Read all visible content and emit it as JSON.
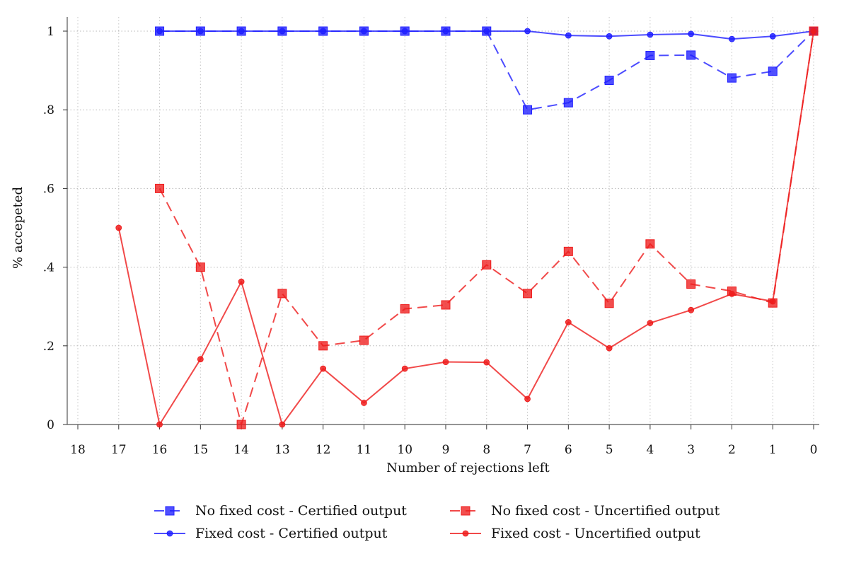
{
  "chart_data": {
    "type": "line",
    "xlabel": "Number of rejections left",
    "ylabel": "% accepeted",
    "x_ticks": [
      "18",
      "17",
      "16",
      "15",
      "14",
      "13",
      "12",
      "11",
      "10",
      "9",
      "8",
      "7",
      "6",
      "5",
      "4",
      "3",
      "2",
      "1",
      "0"
    ],
    "y_ticks": [
      "0",
      ".2",
      ".4",
      ".6",
      ".8",
      "1"
    ],
    "xlim": [
      18,
      0
    ],
    "ylim": [
      0,
      1
    ],
    "grid": true,
    "legend_position": "bottom",
    "series": [
      {
        "name": "No fixed cost - Certified output",
        "color": "#1f1fff",
        "dash": "dashed",
        "marker": "square",
        "points": [
          [
            16,
            1
          ],
          [
            15,
            1
          ],
          [
            14,
            1
          ],
          [
            13,
            1
          ],
          [
            12,
            1
          ],
          [
            11,
            1
          ],
          [
            10,
            1
          ],
          [
            9,
            1
          ],
          [
            8,
            1
          ],
          [
            7,
            0.8
          ],
          [
            6,
            0.818
          ],
          [
            5,
            0.875
          ],
          [
            4,
            0.938
          ],
          [
            3,
            0.939
          ],
          [
            2,
            0.881
          ],
          [
            1,
            0.898
          ],
          [
            0,
            1
          ]
        ]
      },
      {
        "name": "Fixed cost - Certified output",
        "color": "#1f1fff",
        "dash": "solid",
        "marker": "circle",
        "points": [
          [
            16,
            1
          ],
          [
            15,
            1
          ],
          [
            14,
            1
          ],
          [
            13,
            1
          ],
          [
            12,
            1
          ],
          [
            11,
            1
          ],
          [
            10,
            1
          ],
          [
            9,
            1
          ],
          [
            8,
            1
          ],
          [
            7,
            1
          ],
          [
            6,
            0.989
          ],
          [
            5,
            0.987
          ],
          [
            4,
            0.991
          ],
          [
            3,
            0.993
          ],
          [
            2,
            0.98
          ],
          [
            1,
            0.987
          ],
          [
            0,
            1
          ]
        ]
      },
      {
        "name": "No fixed cost - Uncertified output",
        "color": "#ee1c1c",
        "dash": "dashed",
        "marker": "square",
        "points": [
          [
            16,
            0.6
          ],
          [
            15,
            0.4
          ],
          [
            14,
            0
          ],
          [
            13,
            0.333
          ],
          [
            12,
            0.2
          ],
          [
            11,
            0.214
          ],
          [
            10,
            0.294
          ],
          [
            9,
            0.304
          ],
          [
            8,
            0.406
          ],
          [
            7,
            0.333
          ],
          [
            6,
            0.44
          ],
          [
            5,
            0.308
          ],
          [
            4,
            0.459
          ],
          [
            3,
            0.357
          ],
          [
            2,
            0.339
          ],
          [
            1,
            0.309
          ],
          [
            0,
            1
          ]
        ]
      },
      {
        "name": "Fixed cost - Uncertified output",
        "color": "#ee1c1c",
        "dash": "solid",
        "marker": "circle",
        "points": [
          [
            17,
            0.5
          ],
          [
            16,
            0
          ],
          [
            15,
            0.166
          ],
          [
            14,
            0.363
          ],
          [
            13,
            0
          ],
          [
            12,
            0.142
          ],
          [
            11,
            0.055
          ],
          [
            10,
            0.142
          ],
          [
            9,
            0.159
          ],
          [
            8,
            0.158
          ],
          [
            7,
            0.065
          ],
          [
            6,
            0.26
          ],
          [
            5,
            0.194
          ],
          [
            4,
            0.258
          ],
          [
            3,
            0.291
          ],
          [
            2,
            0.332
          ],
          [
            1,
            0.313
          ],
          [
            0,
            1
          ]
        ]
      }
    ]
  }
}
